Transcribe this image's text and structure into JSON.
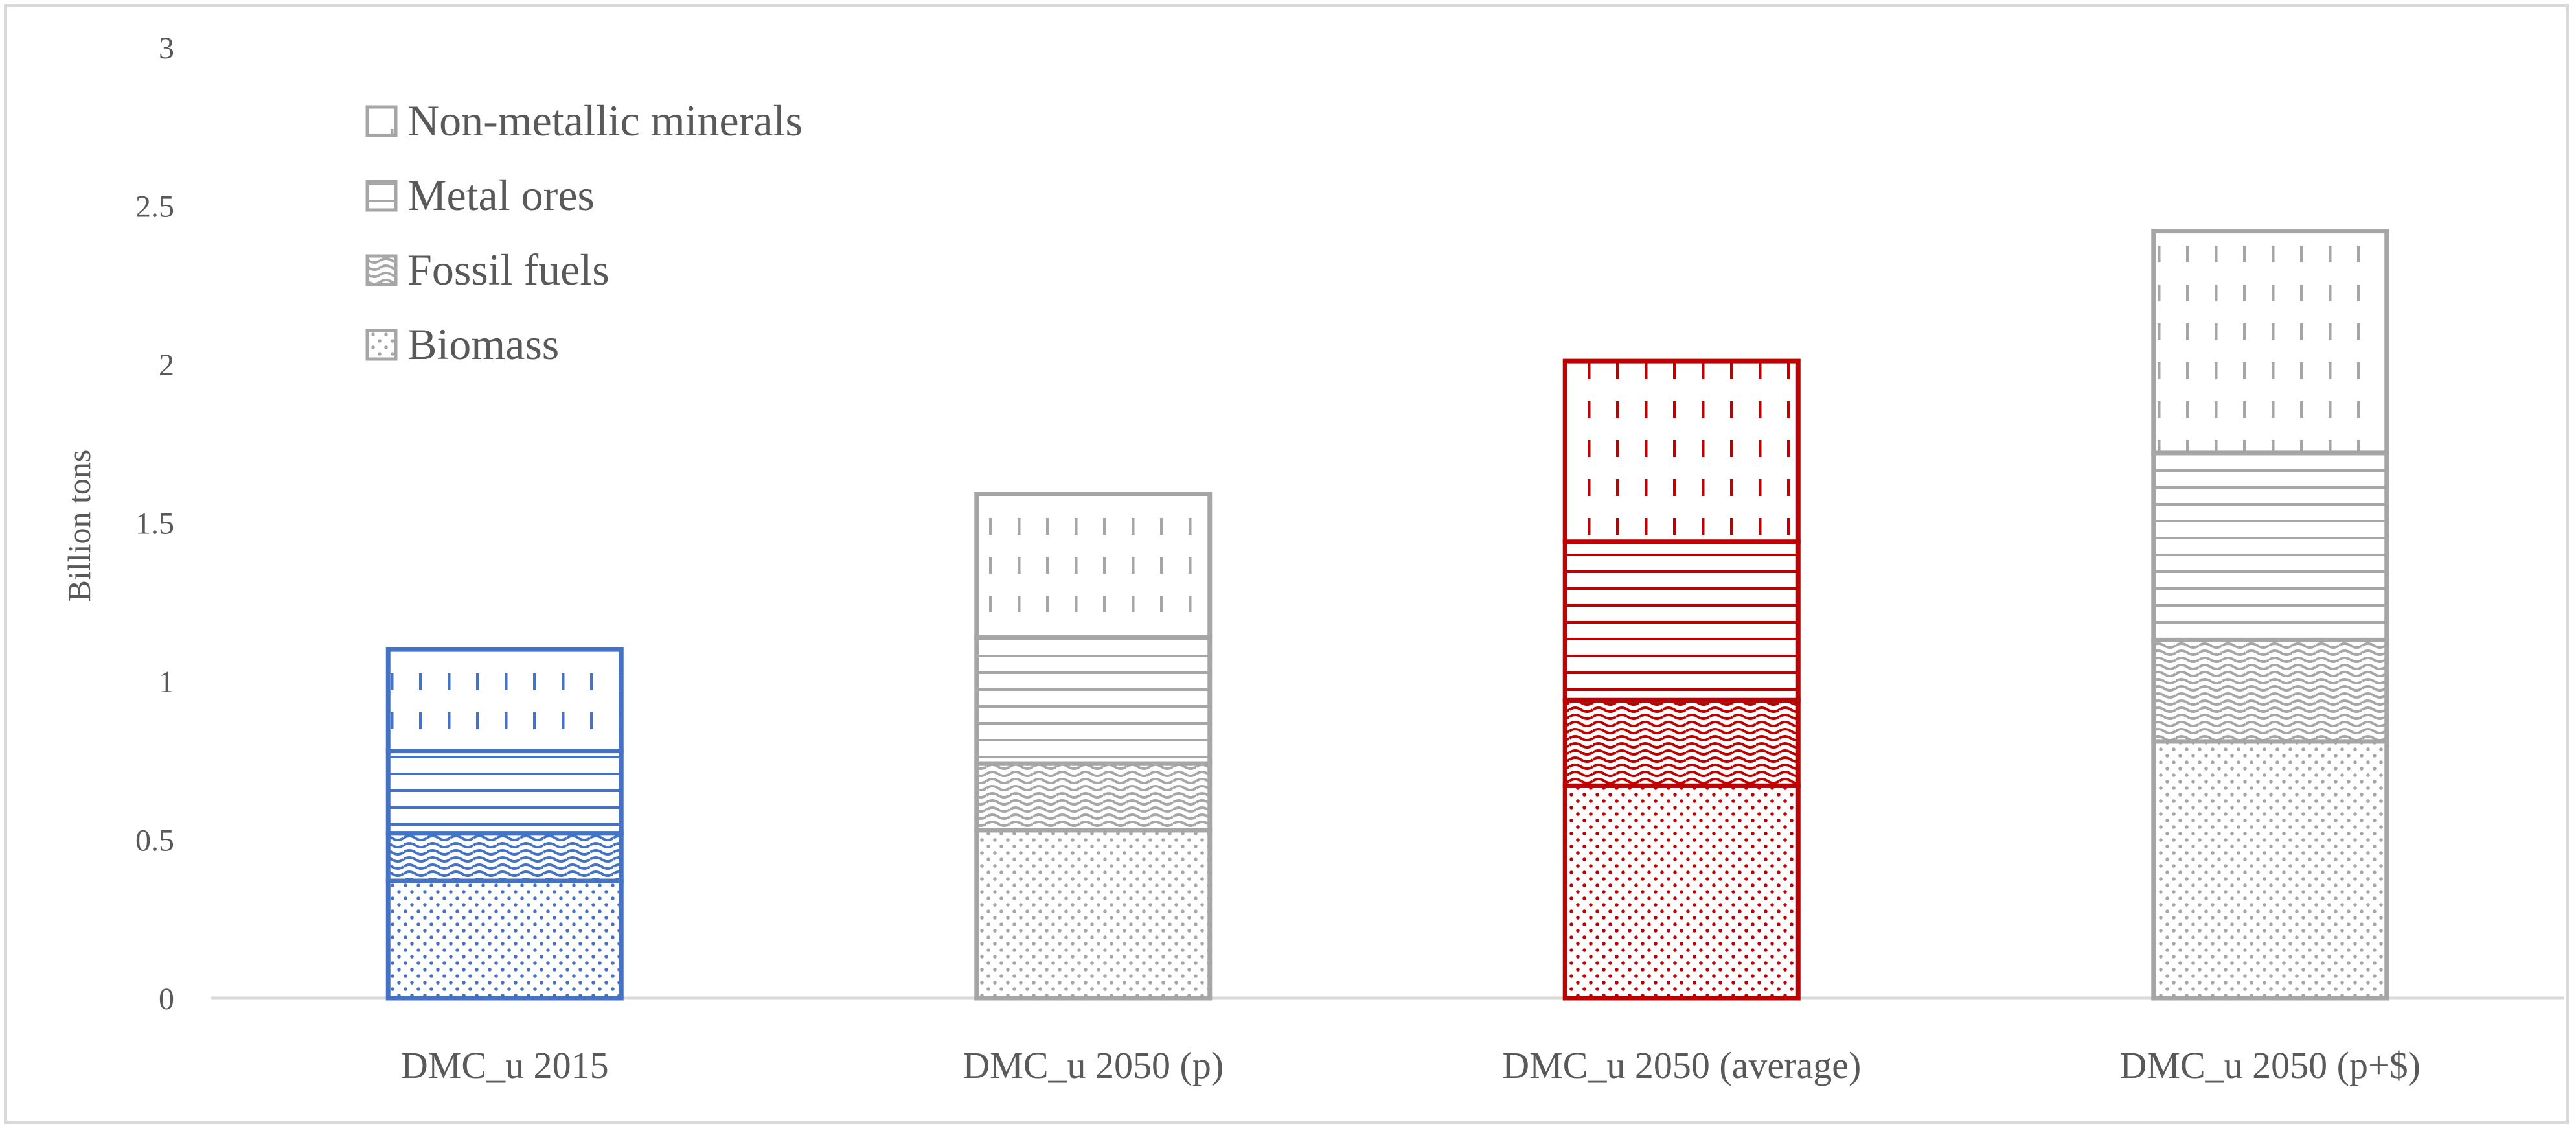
{
  "chart_data": {
    "type": "bar",
    "stacked": true,
    "title": "",
    "xlabel": "",
    "ylabel": "Billion tons",
    "ylim": [
      0,
      3
    ],
    "yticks": [
      0,
      0.5,
      1,
      1.5,
      2,
      2.5,
      3
    ],
    "ytick_labels": [
      "0",
      "0.5",
      "1",
      "1.5",
      "2",
      "2.5",
      "3"
    ],
    "categories": [
      "DMC_u 2015",
      "DMC_u 2050 (p)",
      "DMC_u 2050 (average)",
      "DMC_u 2050 (p+$)"
    ],
    "bar_colors": [
      "#4472c4",
      "#a6a6a6",
      "#c00000",
      "#a6a6a6"
    ],
    "series": [
      {
        "name": "Biomass",
        "pattern": "dots",
        "values": [
          0.37,
          0.53,
          0.67,
          0.81
        ]
      },
      {
        "name": "Fossil fuels",
        "pattern": "wave",
        "values": [
          0.15,
          0.21,
          0.27,
          0.32
        ]
      },
      {
        "name": "Metal ores",
        "pattern": "hlines",
        "values": [
          0.26,
          0.4,
          0.5,
          0.59
        ]
      },
      {
        "name": "Non-metallic minerals",
        "pattern": "vdash",
        "values": [
          0.32,
          0.45,
          0.57,
          0.7
        ]
      }
    ],
    "legend": {
      "position": "top-left",
      "order": [
        "Non-metallic minerals",
        "Metal ores",
        "Fossil fuels",
        "Biomass"
      ],
      "color": "#a6a6a6"
    },
    "grid": false
  }
}
